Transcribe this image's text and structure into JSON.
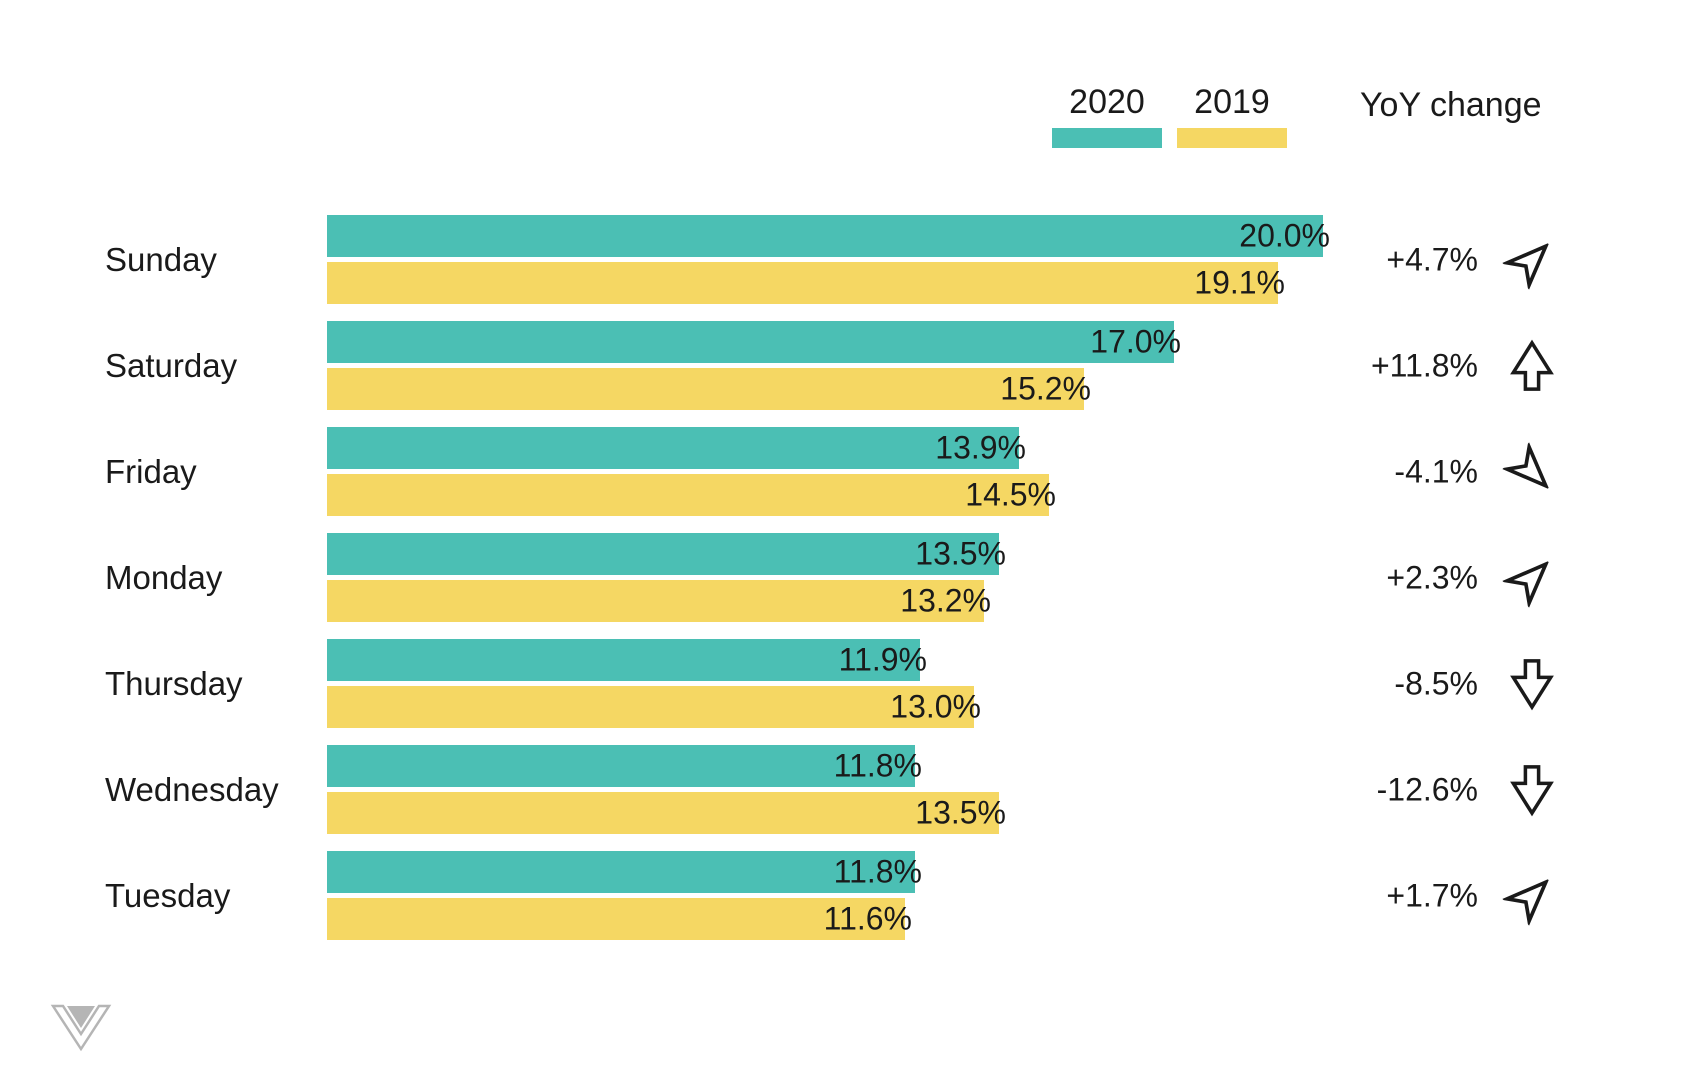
{
  "legend": {
    "series_2020": "2020",
    "series_2019": "2019",
    "yoy_header": "YoY change"
  },
  "colors": {
    "teal": "#4BBFB4",
    "yellow": "#F5D763",
    "text": "#1a1a1a",
    "logo_gray": "#b5b5b5"
  },
  "chart_data": {
    "type": "bar",
    "orientation": "horizontal",
    "unit": "%",
    "title": "",
    "categories": [
      "Sunday",
      "Saturday",
      "Friday",
      "Monday",
      "Thursday",
      "Wednesday",
      "Tuesday"
    ],
    "series": [
      {
        "name": "2020",
        "color": "#4BBFB4",
        "values": [
          20.0,
          17.0,
          13.9,
          13.5,
          11.9,
          11.8,
          11.8
        ]
      },
      {
        "name": "2019",
        "color": "#F5D763",
        "values": [
          19.1,
          15.2,
          14.5,
          13.2,
          13.0,
          13.5,
          11.6
        ]
      }
    ],
    "value_labels": {
      "s2020": [
        "20.0%",
        "17.0%",
        "13.9%",
        "13.5%",
        "11.9%",
        "11.8%",
        "11.8%"
      ],
      "s2019": [
        "19.1%",
        "15.2%",
        "14.5%",
        "13.2%",
        "13.0%",
        "13.5%",
        "11.6%"
      ]
    },
    "yoy_change": {
      "header": "YoY change",
      "labels": [
        "+4.7%",
        "+11.8%",
        "-4.1%",
        "+2.3%",
        "-8.5%",
        "-12.6%",
        "+1.7%"
      ],
      "directions": [
        "up-right",
        "up",
        "down-right",
        "up-right",
        "down",
        "down",
        "up-right"
      ]
    },
    "xlim": [
      0,
      20.0
    ],
    "grid": false,
    "legend_position": "top-right"
  }
}
